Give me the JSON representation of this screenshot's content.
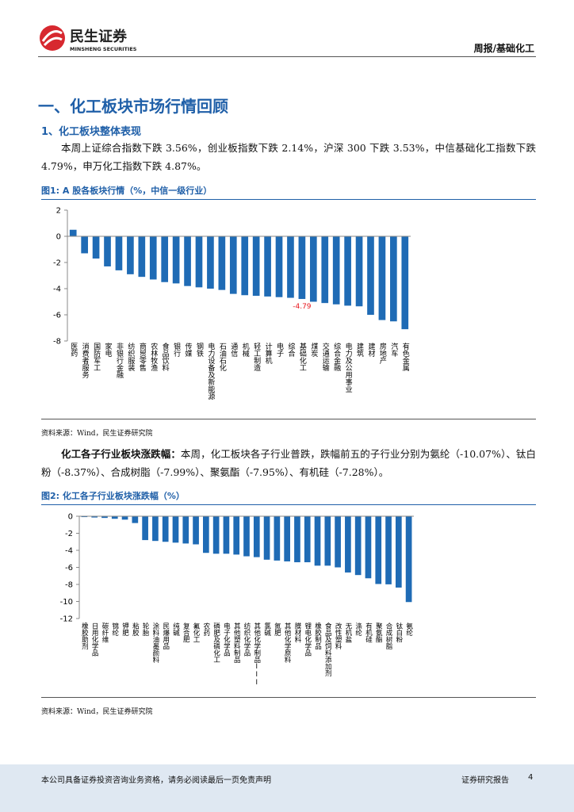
{
  "header": {
    "brand": "民生证券",
    "brand_en": "MINSHENG SECURITIES",
    "report_type": "周报/基础化工"
  },
  "section_title": "一、化工板块市场行情回顾",
  "subsection_title": "1、化工板块整体表现",
  "paragraph1": "本周上证综合指数下跌 3.56%，创业板指数下跌 2.14%，沪深 300 下跌 3.53%，中信基础化工指数下跌 4.79%，申万化工指数下跌 4.87%。",
  "paragraph2": {
    "lead": "化工各子行业板块涨跌幅：",
    "text": "本周，化工板块各子行业普跌，跌幅前五的子行业分别为氨纶（-10.07%）、钛白粉（-8.37%）、合成树脂（-7.99%）、聚氨酯（-7.95%）、有机硅（-7.28%）。"
  },
  "chart_data": [
    {
      "type": "bar",
      "title": "图1: A 股各板块行情（%，中信一级行业）",
      "source": "资料来源：Wind，民生证券研究院",
      "categories": [
        "医药",
        "消费者服务",
        "国防军工",
        "家电",
        "非银行金融",
        "纺织服装",
        "商贸零售",
        "农林牧渔",
        "食品饮料",
        "银行",
        "传媒",
        "钢铁",
        "电力设备及新能源",
        "石油石化",
        "通信",
        "机械",
        "轻工制造",
        "计算机",
        "电子",
        "综合",
        "基础化工",
        "煤炭",
        "交通运输",
        "综合金融",
        "电力及公用事业",
        "建筑",
        "建材",
        "房地产",
        "汽车",
        "有色金属"
      ],
      "values": [
        0.5,
        -1.3,
        -1.7,
        -2.3,
        -2.6,
        -2.9,
        -3.1,
        -3.3,
        -3.5,
        -3.6,
        -3.8,
        -3.9,
        -4.0,
        -4.1,
        -4.4,
        -4.5,
        -4.55,
        -4.6,
        -4.65,
        -4.7,
        -4.79,
        -5.0,
        -5.1,
        -5.2,
        -5.3,
        -5.35,
        -6.0,
        -6.4,
        -6.5,
        -7.1
      ],
      "value_label_indices": [
        20
      ],
      "value_label_color": "#e8151b",
      "color": "#1f6bb5",
      "ylim": [
        -8,
        2
      ],
      "yticks": [
        -8,
        -6,
        -4,
        -2,
        0,
        2
      ]
    },
    {
      "type": "bar",
      "title": "图2: 化工各子行业板块涨跌幅（%）",
      "source": "资料来源：Wind，民生证券研究院",
      "categories": [
        "橡胶助剂",
        "日用化学品",
        "碳纤维",
        "锦纶",
        "钾肥",
        "粘胶",
        "轮胎",
        "涂料油墨颜料",
        "民爆用品",
        "纯碱",
        "复合肥",
        "氟化工",
        "农药",
        "磷肥及磷化工",
        "电子化学品",
        "其他塑料制品",
        "纺织化学品",
        "其他化学制品III",
        "氯碱",
        "氮肥",
        "其他化学原料",
        "膜材料",
        "锂电化学品",
        "橡胶制品",
        "食品及饲料添加剂",
        "改性塑料",
        "无机盐",
        "涤纶",
        "有机硅",
        "聚氨酯",
        "合成树脂",
        "钛白粉",
        "氨纶"
      ],
      "values": [
        -0.1,
        -0.15,
        -0.2,
        -0.3,
        -0.4,
        -0.8,
        -2.8,
        -2.9,
        -3.0,
        -3.1,
        -3.2,
        -3.3,
        -4.3,
        -4.4,
        -4.4,
        -4.5,
        -4.7,
        -4.8,
        -5.1,
        -5.2,
        -5.3,
        -5.4,
        -5.4,
        -5.8,
        -5.8,
        -6.0,
        -6.6,
        -6.9,
        -7.28,
        -7.95,
        -7.99,
        -8.37,
        -10.07
      ],
      "color": "#1f6bb5",
      "ylim": [
        -12,
        0
      ],
      "yticks": [
        -12,
        -10,
        -8,
        -6,
        -4,
        -2,
        0
      ]
    }
  ],
  "footer": {
    "disclaimer": "本公司具备证券投资咨询业务资格，请务必阅读最后一页免责声明",
    "report_label": "证券研究报告",
    "page": 4
  }
}
